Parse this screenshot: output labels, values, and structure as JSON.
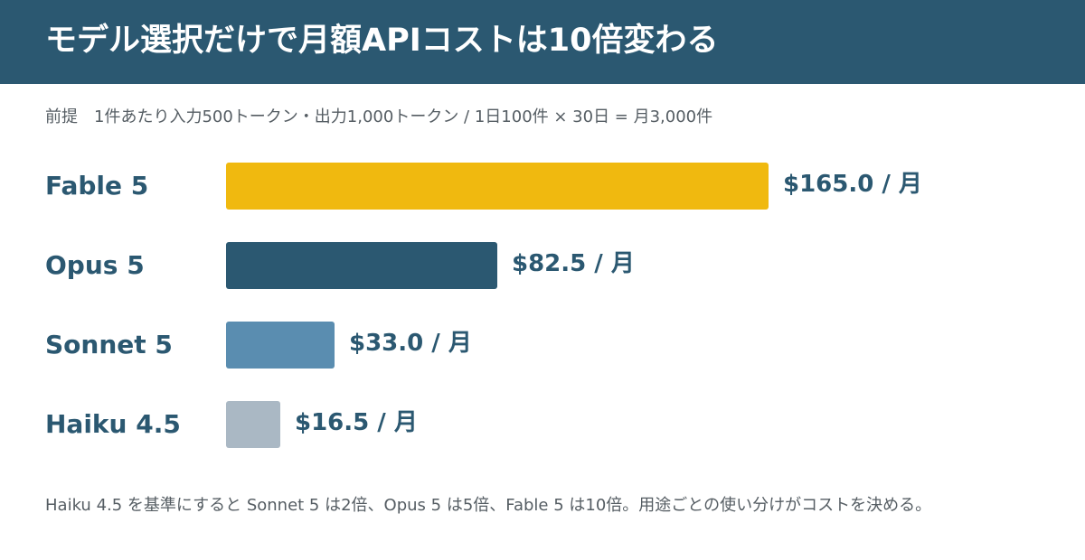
{
  "header": {
    "title": "モデル選択だけで月額APIコストは10倍変わる"
  },
  "premise": "前提　1件あたり入力500トークン・出力1,000トークン / 1日100件 × 30日 = 月3,000件",
  "chart_data": {
    "type": "bar",
    "orientation": "horizontal",
    "categories": [
      "Fable 5",
      "Opus 5",
      "Sonnet 5",
      "Haiku 4.5"
    ],
    "values": [
      165.0,
      82.5,
      33.0,
      16.5
    ],
    "value_labels": [
      "$165.0 / 月",
      "$82.5 / 月",
      "$33.0 / 月",
      "$16.5 / 月"
    ],
    "colors": [
      "#f0b90f",
      "#2b5871",
      "#5a8db0",
      "#aab8c4"
    ],
    "xlim": [
      0,
      165.0
    ],
    "grid": false
  },
  "footnote": "Haiku 4.5 を基準にすると Sonnet 5 は2倍、Opus 5 は5倍、Fable 5 は10倍。用途ごとの使い分けがコストを決める。"
}
